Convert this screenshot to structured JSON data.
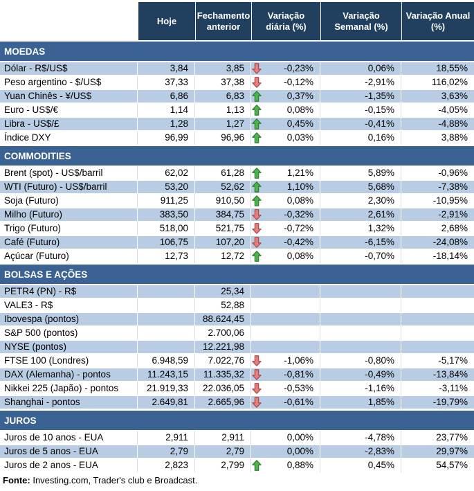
{
  "colors": {
    "header_bg": "#21405F",
    "section_bg": "#3A6394",
    "shaded_row_bg": "#B8CCE4",
    "plain_row_border": "#D6DEE8",
    "arrow_up_fill": "#4FB24E",
    "arrow_up_stroke": "#2D7E2F",
    "arrow_down_fill": "#E08080",
    "arrow_down_stroke": "#B04A46"
  },
  "chart_data": {
    "type": "table",
    "columns": [
      "",
      "Hoje",
      "Fechamento anterior",
      "Variação diária (%)",
      "Variação Semanal (%)",
      "Variação Anual (%)"
    ],
    "sections": [
      {
        "title": "MOEDAS",
        "zebra_start": "shaded",
        "rows": [
          {
            "label": "Dólar - R$/US$",
            "hoje": "3,84",
            "fechamento": "3,85",
            "arrow": "down",
            "diaria": "-0,23%",
            "semanal": "0,06%",
            "anual": "18,55%"
          },
          {
            "label": "Peso argentino - $/US$",
            "hoje": "37,33",
            "fechamento": "37,38",
            "arrow": "down",
            "diaria": "-0,12%",
            "semanal": "-2,91%",
            "anual": "116,02%"
          },
          {
            "label": "Yuan Chinês - ¥/US$",
            "hoje": "6,86",
            "fechamento": "6,83",
            "arrow": "up",
            "diaria": "0,37%",
            "semanal": "-1,35%",
            "anual": "3,63%"
          },
          {
            "label": "Euro - US$/€",
            "hoje": "1,14",
            "fechamento": "1,13",
            "arrow": "up",
            "diaria": "0,08%",
            "semanal": "-0,15%",
            "anual": "-4,05%"
          },
          {
            "label": "Libra - US$/£",
            "hoje": "1,28",
            "fechamento": "1,27",
            "arrow": "up",
            "diaria": "0,45%",
            "semanal": "-0,41%",
            "anual": "-4,88%"
          },
          {
            "label": "Índice DXY",
            "hoje": "96,99",
            "fechamento": "96,96",
            "arrow": "up",
            "diaria": "0,03%",
            "semanal": "0,16%",
            "anual": "3,88%"
          }
        ]
      },
      {
        "title": "COMMODITIES",
        "zebra_start": "plain",
        "rows": [
          {
            "label": "Brent (spot) - US$/barril",
            "hoje": "62,02",
            "fechamento": "61,28",
            "arrow": "up",
            "diaria": "1,21%",
            "semanal": "5,89%",
            "anual": "-0,96%"
          },
          {
            "label": "WTI (Futuro) - US$/barril",
            "hoje": "53,20",
            "fechamento": "52,62",
            "arrow": "up",
            "diaria": "1,10%",
            "semanal": "5,68%",
            "anual": "-7,38%"
          },
          {
            "label": "Soja (Futuro)",
            "hoje": "911,25",
            "fechamento": "910,50",
            "arrow": "up",
            "diaria": "0,08%",
            "semanal": "2,30%",
            "anual": "-10,95%"
          },
          {
            "label": "Milho (Futuro)",
            "hoje": "383,50",
            "fechamento": "384,75",
            "arrow": "down",
            "diaria": "-0,32%",
            "semanal": "2,61%",
            "anual": "-2,91%"
          },
          {
            "label": "Trigo (Futuro)",
            "hoje": "518,00",
            "fechamento": "521,75",
            "arrow": "down",
            "diaria": "-0,72%",
            "semanal": "1,32%",
            "anual": "2,68%"
          },
          {
            "label": "Café (Futuro)",
            "hoje": "106,75",
            "fechamento": "107,20",
            "arrow": "down",
            "diaria": "-0,42%",
            "semanal": "-6,15%",
            "anual": "-24,08%"
          },
          {
            "label": "Açúcar (Futuro)",
            "hoje": "12,73",
            "fechamento": "12,72",
            "arrow": "up",
            "diaria": "0,08%",
            "semanal": "-0,70%",
            "anual": "-18,14%"
          }
        ]
      },
      {
        "title": "BOLSAS E AÇÕES",
        "zebra_start": "shaded",
        "rows": [
          {
            "label": "PETR4 (PN) - R$",
            "hoje": "",
            "fechamento": "25,34",
            "arrow": "",
            "diaria": "",
            "semanal": "",
            "anual": ""
          },
          {
            "label": "VALE3 - R$",
            "hoje": "",
            "fechamento": "52,88",
            "arrow": "",
            "diaria": "",
            "semanal": "",
            "anual": ""
          },
          {
            "label": "Ibovespa (pontos)",
            "hoje": "",
            "fechamento": "88.624,45",
            "arrow": "",
            "diaria": "",
            "semanal": "",
            "anual": ""
          },
          {
            "label": "S&P 500 (pontos)",
            "hoje": "",
            "fechamento": "2.700,06",
            "arrow": "",
            "diaria": "",
            "semanal": "",
            "anual": ""
          },
          {
            "label": "NYSE (pontos)",
            "hoje": "",
            "fechamento": "12.221,98",
            "arrow": "",
            "diaria": "",
            "semanal": "",
            "anual": ""
          },
          {
            "label": "FTSE 100 (Londres)",
            "hoje": "6.948,59",
            "fechamento": "7.022,76",
            "arrow": "down",
            "diaria": "-1,06%",
            "semanal": "-0,80%",
            "anual": "-5,17%"
          },
          {
            "label": "DAX (Alemanha) - pontos",
            "hoje": "11.243,15",
            "fechamento": "11.335,32",
            "arrow": "down",
            "diaria": "-0,81%",
            "semanal": "-0,49%",
            "anual": "-13,84%"
          },
          {
            "label": "Nikkei 225 (Japão) - pontos",
            "hoje": "21.919,33",
            "fechamento": "22.036,05",
            "arrow": "down",
            "diaria": "-0,53%",
            "semanal": "-1,16%",
            "anual": "-3,11%"
          },
          {
            "label": "Shanghai - pontos",
            "hoje": "2.649,81",
            "fechamento": "2.665,96",
            "arrow": "down",
            "diaria": "-0,61%",
            "semanal": "1,85%",
            "anual": "-19,79%"
          }
        ]
      },
      {
        "title": "JUROS",
        "zebra_start": "plain",
        "rows": [
          {
            "label": "Juros de 10 anos - EUA",
            "hoje": "2,911",
            "fechamento": "2,911",
            "arrow": "",
            "diaria": "0,00%",
            "semanal": "-4,78%",
            "anual": "23,77%"
          },
          {
            "label": "Juros de 5 anos - EUA",
            "hoje": "2,79",
            "fechamento": "2,79",
            "arrow": "",
            "diaria": "0,00%",
            "semanal": "-2,83%",
            "anual": "29,97%"
          },
          {
            "label": "Juros de 2 anos - EUA",
            "hoje": "2,823",
            "fechamento": "2,799",
            "arrow": "up",
            "diaria": "0,88%",
            "semanal": "0,45%",
            "anual": "54,57%"
          }
        ]
      }
    ]
  },
  "footer": {
    "label": "Fonte:",
    "text": " Investing.com, Trader's club e Broadcast."
  }
}
